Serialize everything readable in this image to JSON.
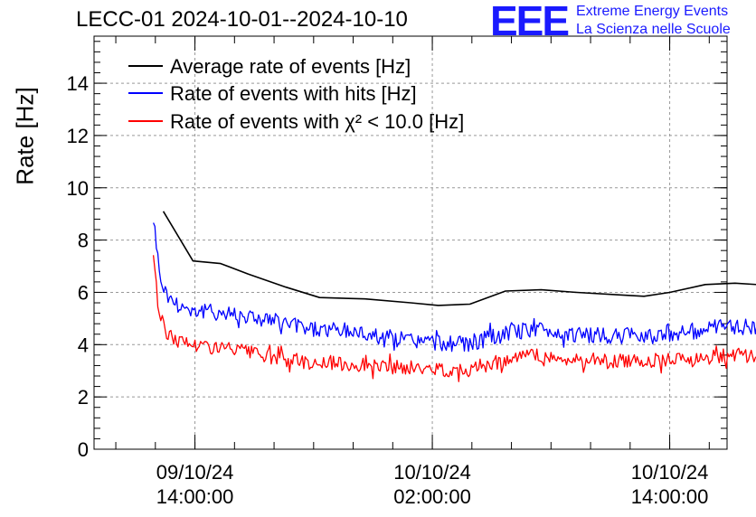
{
  "title": "LECC-01 2024-10-01--2024-10-10",
  "logo": {
    "mark": "EEE",
    "line1": "Extreme Energy Events",
    "line2": "La Scienza nelle Scuole",
    "color": "#1a1aff"
  },
  "chart_data": {
    "type": "line",
    "title": "LECC-01 2024-10-01--2024-10-10",
    "ylabel": "Rate [Hz]",
    "xlabel": "",
    "ylim": [
      0,
      15.8
    ],
    "xlim_hours": [
      -5.1,
      26.9
    ],
    "y_ticks": [
      "0",
      "2",
      "4",
      "6",
      "8",
      "10",
      "12",
      "14"
    ],
    "x_ticks": [
      {
        "hour": 0,
        "date": "09/10/24",
        "time": "14:00:00"
      },
      {
        "hour": 12,
        "date": "10/10/24",
        "time": "02:00:00"
      },
      {
        "hour": 24,
        "date": "10/10/24",
        "time": "14:00:00"
      }
    ],
    "grid": true,
    "legend_position": "top-left",
    "series": [
      {
        "name": "Average rate of events [Hz]",
        "color": "#000000",
        "x_hours": [
          -1.6,
          -0.1,
          1.3,
          2.7,
          4.6,
          6.3,
          8.6,
          10.9,
          12.3,
          13.9,
          15.7,
          17.5,
          19.3,
          21.5,
          22.7,
          24.0,
          25.8,
          27.3,
          28.4
        ],
        "values": [
          9.1,
          7.2,
          7.1,
          6.7,
          6.2,
          5.8,
          5.75,
          5.6,
          5.5,
          5.55,
          6.05,
          6.1,
          6.0,
          5.9,
          5.85,
          6.0,
          6.3,
          6.35,
          6.3
        ]
      },
      {
        "name": "Rate of events with hits [Hz]",
        "color": "#0000ff",
        "x_hours": [
          -2.1,
          -1.8,
          -1.5,
          -1.0,
          0.0,
          2.0,
          4.0,
          6.0,
          8.0,
          10.0,
          12.0,
          13.9,
          15.0,
          17.0,
          19.0,
          21.0,
          23.0,
          25.0,
          27.0,
          28.4
        ],
        "values": [
          8.9,
          6.8,
          6.0,
          5.6,
          5.3,
          5.2,
          4.9,
          4.6,
          4.5,
          4.25,
          4.1,
          4.0,
          4.3,
          4.6,
          4.4,
          4.3,
          4.4,
          4.5,
          4.7,
          4.7
        ]
      },
      {
        "name": "Rate of events with χ² < 10.0 [Hz]",
        "color": "#ff0000",
        "x_hours": [
          -2.1,
          -1.8,
          -1.5,
          -1.0,
          0.0,
          2.0,
          4.0,
          6.0,
          8.0,
          10.0,
          12.0,
          13.9,
          15.0,
          17.0,
          19.0,
          21.0,
          23.0,
          25.0,
          27.0,
          28.4
        ],
        "values": [
          7.5,
          5.2,
          4.5,
          4.2,
          4.0,
          3.8,
          3.5,
          3.3,
          3.25,
          3.15,
          3.05,
          3.05,
          3.3,
          3.6,
          3.4,
          3.35,
          3.4,
          3.45,
          3.6,
          3.55
        ]
      }
    ]
  }
}
